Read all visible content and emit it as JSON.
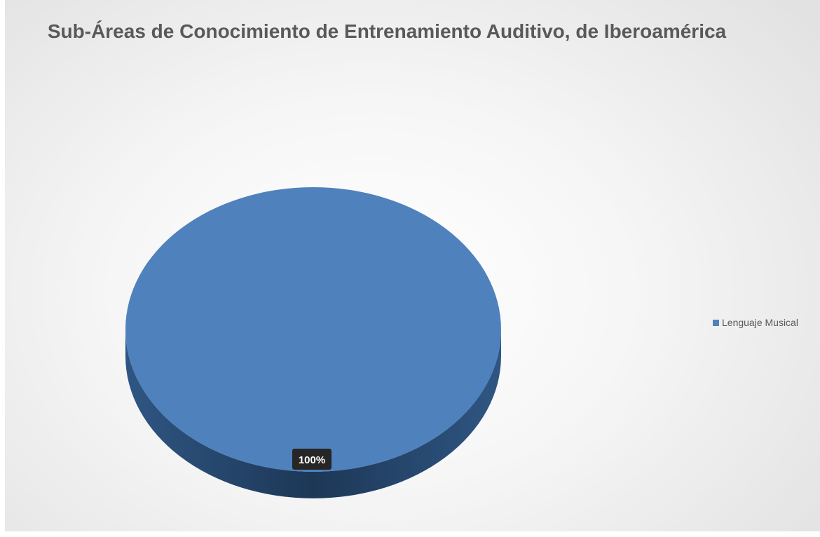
{
  "chart_data": {
    "type": "pie",
    "title": "Sub-Áreas de Conocimiento de Entrenamiento Auditivo, de Iberoamérica",
    "categories": [
      "Lenguaje Musical"
    ],
    "values": [
      100
    ],
    "data_labels": [
      "100%"
    ],
    "legend": "right",
    "style": "3d",
    "colors": {
      "slice_top": "#4f81bd",
      "slice_side": "#2a4b73",
      "slice_side_dark": "#1c3450",
      "label_bg": "#262626",
      "label_text": "#ffffff"
    }
  }
}
